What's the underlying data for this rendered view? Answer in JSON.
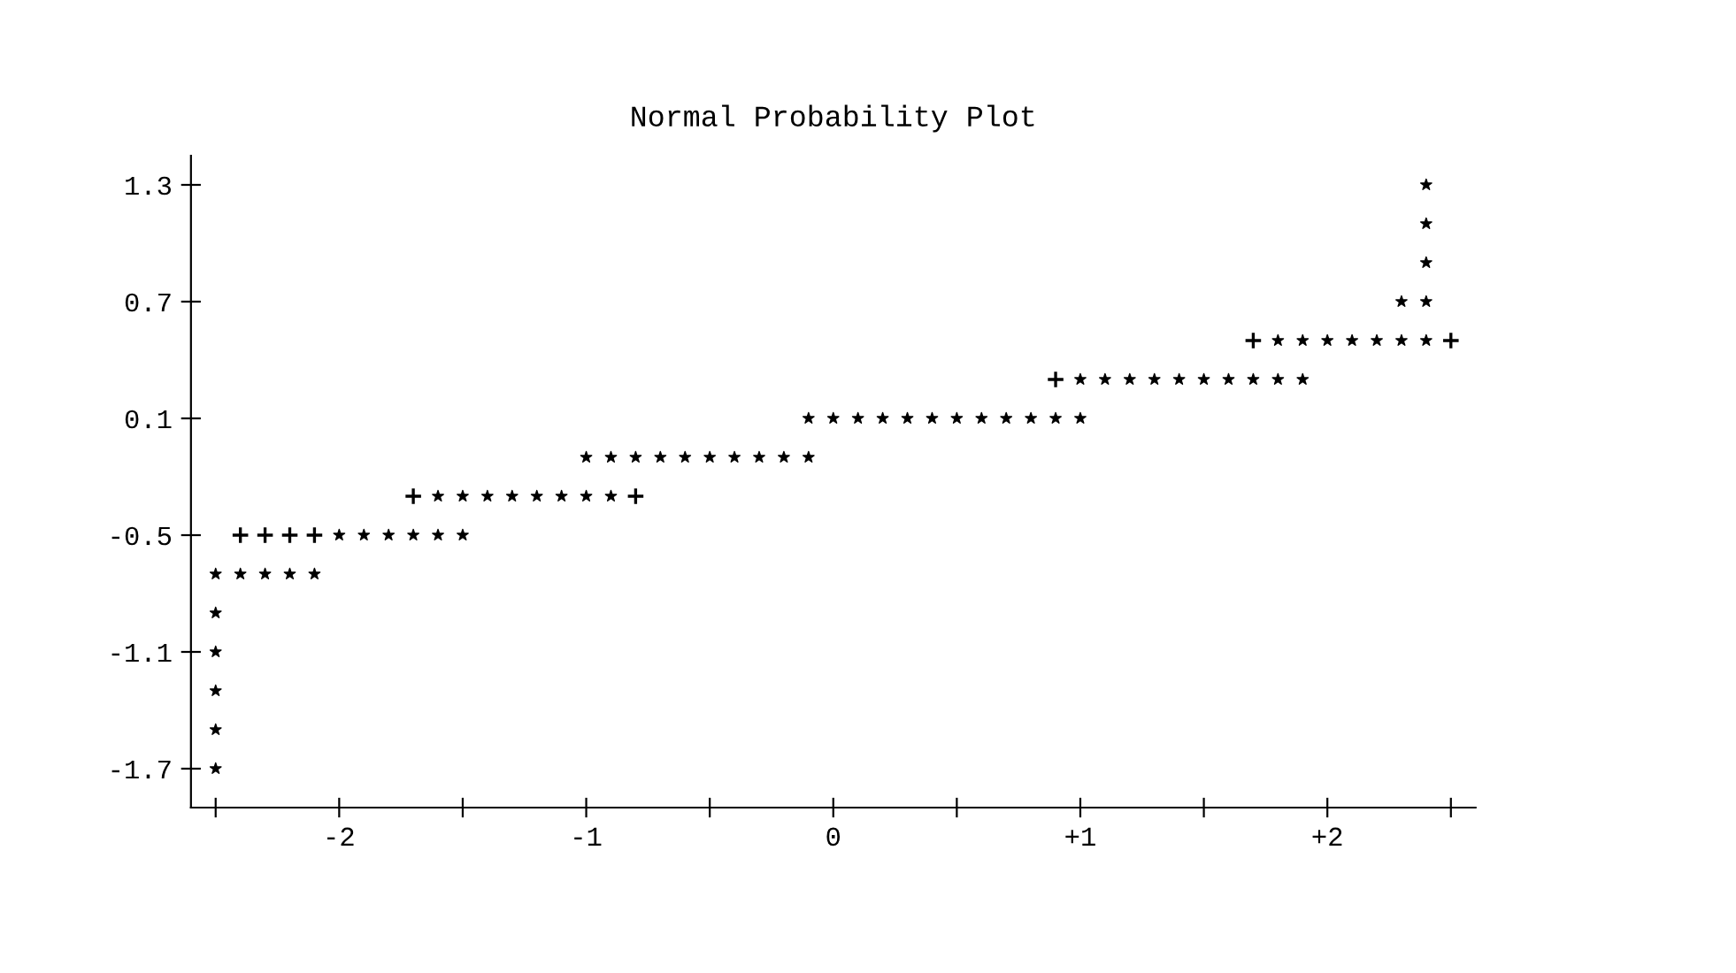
{
  "chart_data": {
    "type": "scatter",
    "title": "Normal Probability Plot",
    "series": [
      {
        "color": "#000000",
        "marker": "star",
        "x": [
          2.4,
          2.4,
          2.4,
          2.3,
          2.4,
          1.8,
          1.9,
          2.0,
          2.1,
          2.2,
          2.3,
          2.4,
          1.0,
          1.1,
          1.2,
          1.3,
          1.4,
          1.5,
          1.6,
          1.7,
          1.8,
          1.9,
          -0.1,
          0.0,
          0.1,
          0.2,
          0.3,
          0.4,
          0.5,
          0.6,
          0.7,
          0.8,
          0.9,
          1.0,
          -1.0,
          -0.9,
          -0.8,
          -0.7,
          -0.6,
          -0.5,
          -0.4,
          -0.3,
          -0.2,
          -0.1,
          -1.6,
          -1.5,
          -1.4,
          -1.3,
          -1.2,
          -1.1,
          -1.0,
          -0.9,
          -2.0,
          -1.9,
          -1.8,
          -1.7,
          -1.6,
          -1.5,
          -2.5,
          -2.4,
          -2.3,
          -2.2,
          -2.1,
          -2.5,
          -2.5,
          -2.5,
          -2.5,
          -2.5
        ],
        "values": [
          1.3,
          1.1,
          0.9,
          0.7,
          0.7,
          0.5,
          0.5,
          0.5,
          0.5,
          0.5,
          0.5,
          0.5,
          0.3,
          0.3,
          0.3,
          0.3,
          0.3,
          0.3,
          0.3,
          0.3,
          0.3,
          0.3,
          0.1,
          0.1,
          0.1,
          0.1,
          0.1,
          0.1,
          0.1,
          0.1,
          0.1,
          0.1,
          0.1,
          0.1,
          -0.1,
          -0.1,
          -0.1,
          -0.1,
          -0.1,
          -0.1,
          -0.1,
          -0.1,
          -0.1,
          -0.1,
          -0.3,
          -0.3,
          -0.3,
          -0.3,
          -0.3,
          -0.3,
          -0.3,
          -0.3,
          -0.5,
          -0.5,
          -0.5,
          -0.5,
          -0.5,
          -0.5,
          -0.7,
          -0.7,
          -0.7,
          -0.7,
          -0.7,
          -0.9,
          -1.1,
          -1.3,
          -1.5,
          -1.7
        ]
      },
      {
        "color": "#000000",
        "marker": "cross",
        "x": [
          -2.4,
          -2.3,
          -2.2,
          -2.1,
          -1.7,
          -0.8,
          0.9,
          1.7,
          2.5
        ],
        "values": [
          -0.5,
          -0.5,
          -0.5,
          -0.5,
          -0.3,
          -0.3,
          0.3,
          0.5,
          0.5
        ]
      }
    ],
    "xlim": [
      -2.6,
      2.6
    ],
    "xticks": [
      {
        "value": -2.5,
        "label": null
      },
      -2,
      {
        "value": -1.5,
        "label": null
      },
      -1,
      {
        "value": -0.5,
        "label": null
      },
      0,
      {
        "value": 0.5,
        "label": null
      },
      {
        "value": 1,
        "label": "+1"
      },
      {
        "value": 1.5,
        "label": null
      },
      {
        "value": 2,
        "label": "+2"
      },
      {
        "value": 2.5,
        "label": null
      }
    ],
    "ylim": [
      -1.9,
      1.45
    ],
    "yticks": [
      -1.7,
      -1.1,
      -0.5,
      0.1,
      0.7,
      1.3
    ],
    "grid": false,
    "legend": false
  }
}
